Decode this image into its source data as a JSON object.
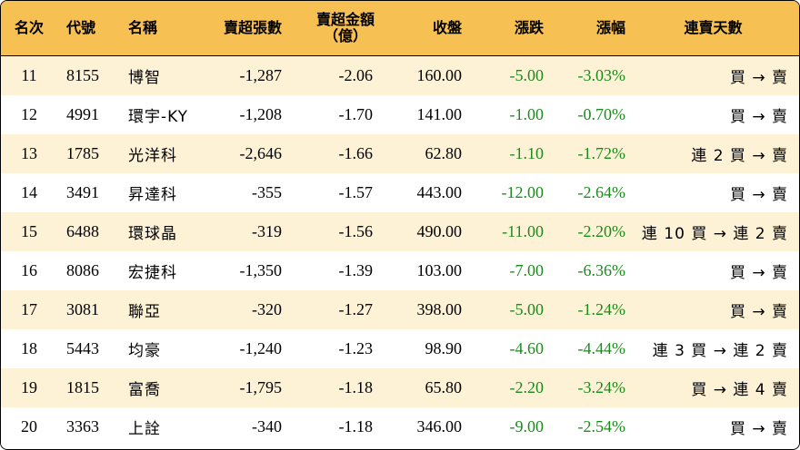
{
  "header": {
    "rank": "名次",
    "code": "代號",
    "name": "名稱",
    "net_sell_lots": "賣超張數",
    "net_sell_amount_line1": "賣超金額",
    "net_sell_amount_line2": "（億）",
    "close": "收盤",
    "change": "漲跌",
    "change_pct": "漲幅",
    "streak": "連賣天數"
  },
  "rows": [
    {
      "rank": "11",
      "code": "8155",
      "name": "博智",
      "lots": "-1,287",
      "amount": "-2.06",
      "close": "160.00",
      "change": "-5.00",
      "pct": "-3.03%",
      "streak": "買 → 賣"
    },
    {
      "rank": "12",
      "code": "4991",
      "name": "環宇-KY",
      "lots": "-1,208",
      "amount": "-1.70",
      "close": "141.00",
      "change": "-1.00",
      "pct": "-0.70%",
      "streak": "買 → 賣"
    },
    {
      "rank": "13",
      "code": "1785",
      "name": "光洋科",
      "lots": "-2,646",
      "amount": "-1.66",
      "close": "62.80",
      "change": "-1.10",
      "pct": "-1.72%",
      "streak": "連 2 買 → 賣"
    },
    {
      "rank": "14",
      "code": "3491",
      "name": "昇達科",
      "lots": "-355",
      "amount": "-1.57",
      "close": "443.00",
      "change": "-12.00",
      "pct": "-2.64%",
      "streak": "買 → 賣"
    },
    {
      "rank": "15",
      "code": "6488",
      "name": "環球晶",
      "lots": "-319",
      "amount": "-1.56",
      "close": "490.00",
      "change": "-11.00",
      "pct": "-2.20%",
      "streak": "連 10 買 → 連 2 賣"
    },
    {
      "rank": "16",
      "code": "8086",
      "name": "宏捷科",
      "lots": "-1,350",
      "amount": "-1.39",
      "close": "103.00",
      "change": "-7.00",
      "pct": "-6.36%",
      "streak": "買 → 賣"
    },
    {
      "rank": "17",
      "code": "3081",
      "name": "聯亞",
      "lots": "-320",
      "amount": "-1.27",
      "close": "398.00",
      "change": "-5.00",
      "pct": "-1.24%",
      "streak": "買 → 賣"
    },
    {
      "rank": "18",
      "code": "5443",
      "name": "均豪",
      "lots": "-1,240",
      "amount": "-1.23",
      "close": "98.90",
      "change": "-4.60",
      "pct": "-4.44%",
      "streak": "連 3 買 → 連 2 賣"
    },
    {
      "rank": "19",
      "code": "1815",
      "name": "富喬",
      "lots": "-1,795",
      "amount": "-1.18",
      "close": "65.80",
      "change": "-2.20",
      "pct": "-3.24%",
      "streak": "買 → 連 4 賣"
    },
    {
      "rank": "20",
      "code": "3363",
      "name": "上詮",
      "lots": "-340",
      "amount": "-1.18",
      "close": "346.00",
      "change": "-9.00",
      "pct": "-2.54%",
      "streak": "買 → 賣"
    }
  ],
  "colors": {
    "header_bg": "#f6c053",
    "odd_row_bg": "#fdf1d6",
    "negative_text": "#1c8a1c"
  }
}
